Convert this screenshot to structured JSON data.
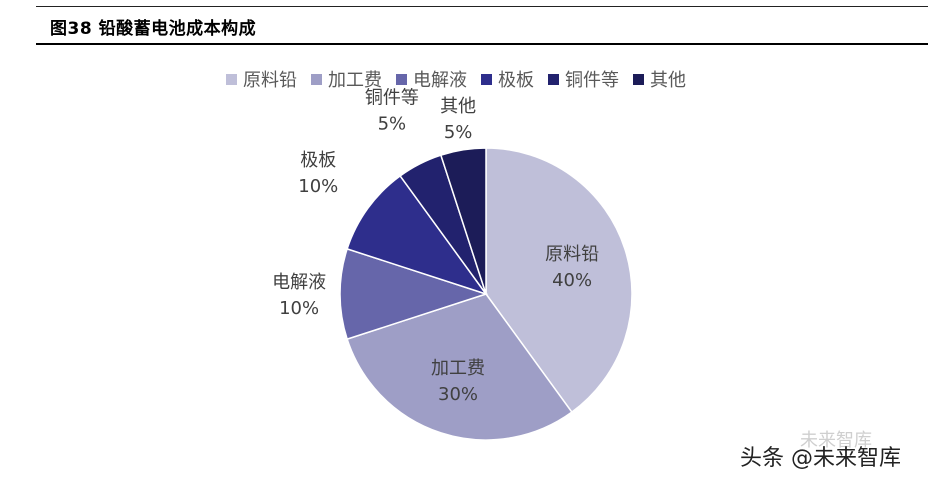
{
  "figure": {
    "title": "图38 铅酸蓄电池成本构成"
  },
  "watermark": {
    "text": "头条 @未来智库",
    "text_bg": "未来智库"
  },
  "chart_data": {
    "type": "pie",
    "title": "",
    "legend_position": "top",
    "slices": [
      {
        "label": "原料铅",
        "value": 40,
        "value_label": "40%",
        "color": "#bfbfd9"
      },
      {
        "label": "加工费",
        "value": 30,
        "value_label": "30%",
        "color": "#9e9ec6"
      },
      {
        "label": "电解液",
        "value": 10,
        "value_label": "10%",
        "color": "#6666aa"
      },
      {
        "label": "极板",
        "value": 10,
        "value_label": "10%",
        "color": "#2e2e8c"
      },
      {
        "label": "铜件等",
        "value": 5,
        "value_label": "5%",
        "color": "#22226e"
      },
      {
        "label": "其他",
        "value": 5,
        "value_label": "5%",
        "color": "#1c1c58"
      }
    ]
  }
}
